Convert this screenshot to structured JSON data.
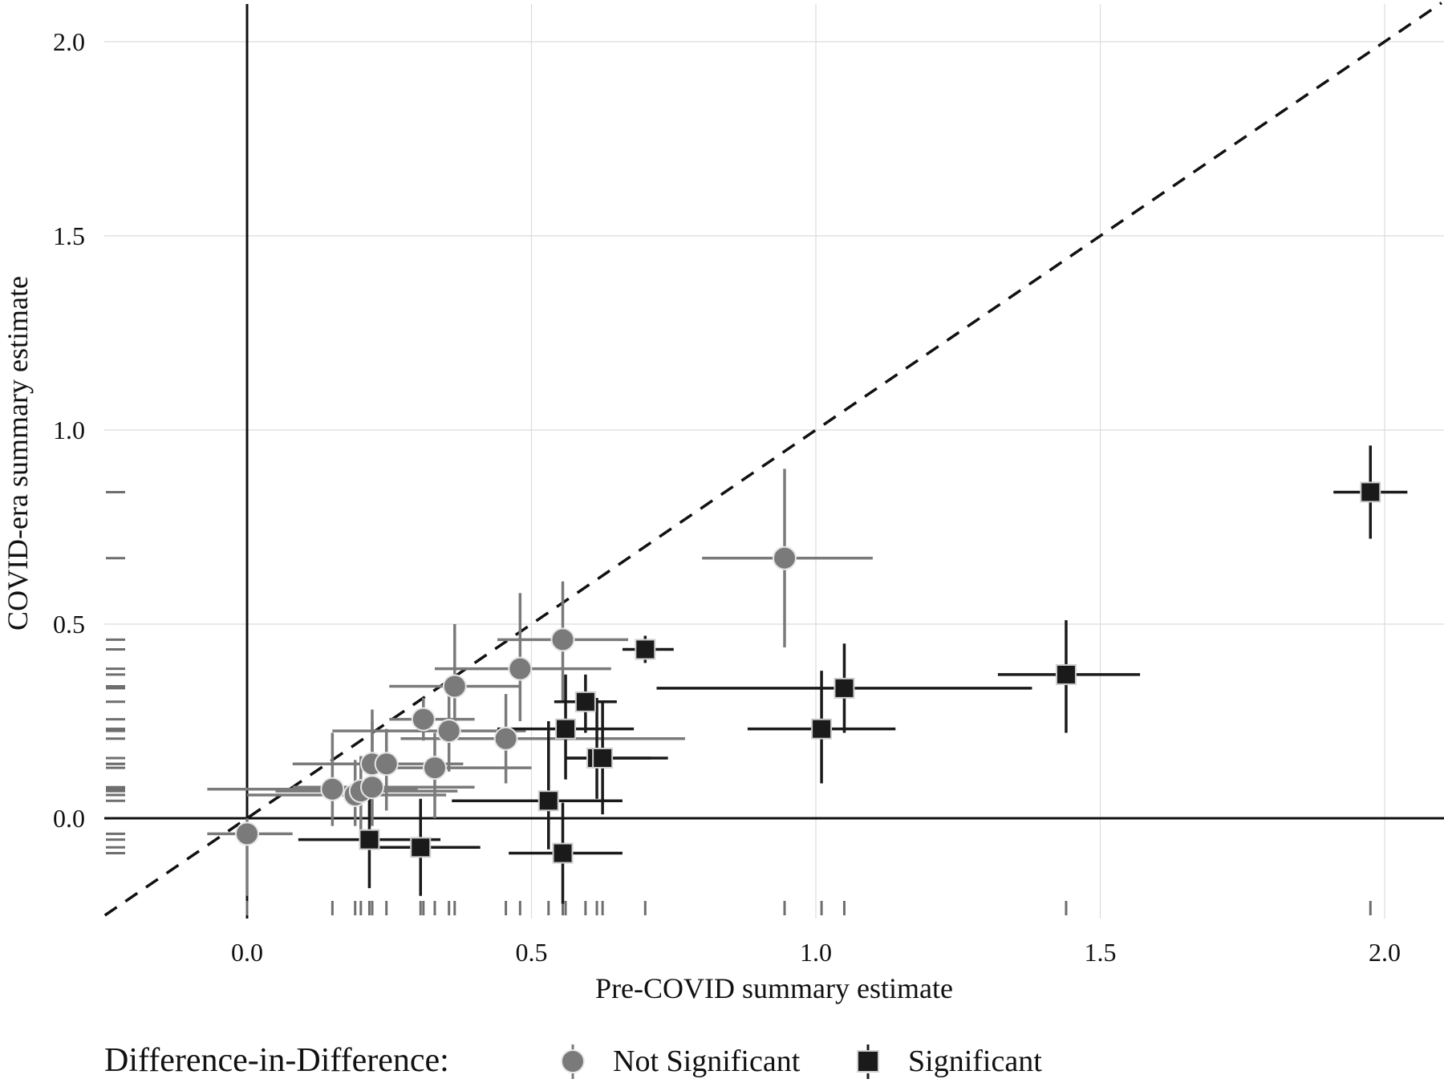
{
  "chart_data": {
    "type": "scatter",
    "xlabel": "Pre-COVID summary estimate",
    "ylabel": "COVID-era summary estimate",
    "xlim": [
      -0.25,
      2.1
    ],
    "ylim": [
      -0.25,
      2.1
    ],
    "x_ticks": [
      "0.0",
      "0.5",
      "1.0",
      "1.5",
      "2.0"
    ],
    "y_ticks": [
      "0.0",
      "0.5",
      "1.0",
      "1.5",
      "2.0"
    ],
    "x_tick_values": [
      0,
      0.5,
      1,
      1.5,
      2
    ],
    "y_tick_values": [
      0,
      0.5,
      1,
      1.5,
      2
    ],
    "grid": true,
    "reference_lines": [
      "x = 0",
      "y = 0",
      "y = x (dashed)"
    ],
    "rug": true,
    "legend": {
      "title": "Difference-in-Difference:",
      "placement": "bottom",
      "entries": [
        "Not Significant",
        "Significant"
      ]
    },
    "colors": {
      "not_significant": "#7a7a7a",
      "significant": "#1a1a1a"
    },
    "series": [
      {
        "name": "Not Significant",
        "marker": "circle",
        "points": [
          {
            "x": 0.0,
            "y": -0.04,
            "xlo": -0.07,
            "xhi": 0.08,
            "ylo": -0.2,
            "yhi": 0.0
          },
          {
            "x": 0.15,
            "y": 0.075,
            "xlo": -0.07,
            "xhi": 0.3,
            "ylo": -0.02,
            "yhi": 0.22
          },
          {
            "x": 0.19,
            "y": 0.06,
            "xlo": 0.0,
            "xhi": 0.35,
            "ylo": -0.02,
            "yhi": 0.15
          },
          {
            "x": 0.2,
            "y": 0.07,
            "xlo": 0.05,
            "xhi": 0.37,
            "ylo": -0.03,
            "yhi": 0.16
          },
          {
            "x": 0.22,
            "y": 0.14,
            "xlo": 0.08,
            "xhi": 0.35,
            "ylo": 0.05,
            "yhi": 0.25
          },
          {
            "x": 0.22,
            "y": 0.08,
            "xlo": 0.08,
            "xhi": 0.4,
            "ylo": -0.02,
            "yhi": 0.28
          },
          {
            "x": 0.245,
            "y": 0.14,
            "xlo": 0.15,
            "xhi": 0.38,
            "ylo": 0.02,
            "yhi": 0.23
          },
          {
            "x": 0.31,
            "y": 0.255,
            "xlo": 0.25,
            "xhi": 0.4,
            "ylo": 0.2,
            "yhi": 0.31
          },
          {
            "x": 0.33,
            "y": 0.13,
            "xlo": 0.2,
            "xhi": 0.5,
            "ylo": 0.0,
            "yhi": 0.22
          },
          {
            "x": 0.355,
            "y": 0.225,
            "xlo": 0.15,
            "xhi": 0.49,
            "ylo": 0.12,
            "yhi": 0.33
          },
          {
            "x": 0.365,
            "y": 0.34,
            "xlo": 0.25,
            "xhi": 0.48,
            "ylo": 0.22,
            "yhi": 0.5
          },
          {
            "x": 0.455,
            "y": 0.205,
            "xlo": 0.27,
            "xhi": 0.77,
            "ylo": 0.09,
            "yhi": 0.32
          },
          {
            "x": 0.48,
            "y": 0.385,
            "xlo": 0.33,
            "xhi": 0.64,
            "ylo": 0.25,
            "yhi": 0.58
          },
          {
            "x": 0.555,
            "y": 0.46,
            "xlo": 0.44,
            "xhi": 0.67,
            "ylo": 0.3,
            "yhi": 0.61
          },
          {
            "x": 0.945,
            "y": 0.67,
            "xlo": 0.8,
            "xhi": 1.1,
            "ylo": 0.44,
            "yhi": 0.9
          }
        ]
      },
      {
        "name": "Significant",
        "marker": "square",
        "points": [
          {
            "x": 0.215,
            "y": -0.055,
            "xlo": 0.09,
            "xhi": 0.34,
            "ylo": -0.18,
            "yhi": 0.08
          },
          {
            "x": 0.305,
            "y": -0.075,
            "xlo": 0.23,
            "xhi": 0.41,
            "ylo": -0.2,
            "yhi": 0.05
          },
          {
            "x": 0.53,
            "y": 0.045,
            "xlo": 0.36,
            "xhi": 0.66,
            "ylo": -0.08,
            "yhi": 0.25
          },
          {
            "x": 0.555,
            "y": -0.09,
            "xlo": 0.46,
            "xhi": 0.66,
            "ylo": -0.22,
            "yhi": 0.04
          },
          {
            "x": 0.56,
            "y": 0.23,
            "xlo": 0.44,
            "xhi": 0.68,
            "ylo": 0.1,
            "yhi": 0.37
          },
          {
            "x": 0.595,
            "y": 0.3,
            "xlo": 0.54,
            "xhi": 0.65,
            "ylo": 0.22,
            "yhi": 0.37
          },
          {
            "x": 0.615,
            "y": 0.155,
            "xlo": 0.56,
            "xhi": 0.71,
            "ylo": 0.05,
            "yhi": 0.31
          },
          {
            "x": 0.625,
            "y": 0.155,
            "xlo": 0.56,
            "xhi": 0.74,
            "ylo": 0.01,
            "yhi": 0.3
          },
          {
            "x": 0.7,
            "y": 0.435,
            "xlo": 0.66,
            "xhi": 0.75,
            "ylo": 0.4,
            "yhi": 0.47
          },
          {
            "x": 1.01,
            "y": 0.23,
            "xlo": 0.88,
            "xhi": 1.14,
            "ylo": 0.09,
            "yhi": 0.38
          },
          {
            "x": 1.05,
            "y": 0.335,
            "xlo": 0.72,
            "xhi": 1.38,
            "ylo": 0.22,
            "yhi": 0.45
          },
          {
            "x": 1.44,
            "y": 0.37,
            "xlo": 1.32,
            "xhi": 1.57,
            "ylo": 0.22,
            "yhi": 0.51
          },
          {
            "x": 1.975,
            "y": 0.84,
            "xlo": 1.91,
            "xhi": 2.04,
            "ylo": 0.72,
            "yhi": 0.96
          }
        ]
      }
    ]
  }
}
